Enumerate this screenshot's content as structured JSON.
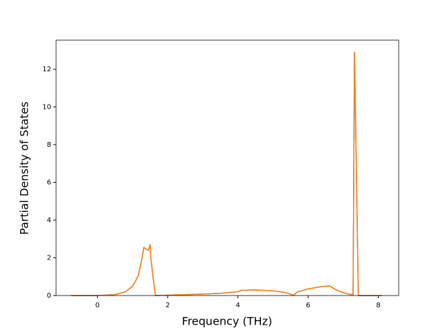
{
  "chart_data": {
    "type": "line",
    "xlabel": "Frequency (THz)",
    "ylabel": "Partial Density of States",
    "x": [
      -0.75,
      0,
      0.5,
      0.8,
      1.0,
      1.15,
      1.25,
      1.32,
      1.4,
      1.45,
      1.5,
      1.52,
      1.58,
      1.65,
      2,
      3,
      3.5,
      4,
      4.1,
      4.5,
      5,
      5.3,
      5.5,
      5.57,
      5.7,
      6.0,
      6.3,
      6.6,
      6.8,
      7.0,
      7.2,
      7.28,
      7.32,
      7.38,
      7.43,
      8.1
    ],
    "series": [
      {
        "color": "#1f77b4",
        "values": [
          0,
          0,
          0.05,
          0.2,
          0.5,
          1.0,
          1.8,
          2.55,
          2.45,
          2.4,
          2.7,
          2.0,
          1.0,
          0,
          0.02,
          0.08,
          0.12,
          0.2,
          0.28,
          0.3,
          0.25,
          0.18,
          0.08,
          0,
          0.2,
          0.35,
          0.45,
          0.52,
          0.3,
          0.15,
          0.06,
          0.05,
          12.9,
          6,
          0,
          0
        ]
      },
      {
        "color": "#ff7f0e",
        "values": [
          0,
          0,
          0.05,
          0.2,
          0.5,
          1.0,
          1.8,
          2.55,
          2.45,
          2.4,
          2.7,
          2.0,
          1.0,
          0,
          0.02,
          0.08,
          0.12,
          0.2,
          0.28,
          0.3,
          0.25,
          0.18,
          0.08,
          0,
          0.2,
          0.35,
          0.45,
          0.52,
          0.3,
          0.15,
          0.06,
          0.05,
          12.9,
          6,
          0,
          0
        ]
      }
    ],
    "xlim": [
      -1.18,
      8.58
    ],
    "xticks": [
      0,
      2,
      4,
      6,
      8
    ],
    "ylim": [
      0,
      13.54
    ],
    "yticks": [
      0,
      2,
      4,
      6,
      8,
      10,
      12
    ]
  }
}
